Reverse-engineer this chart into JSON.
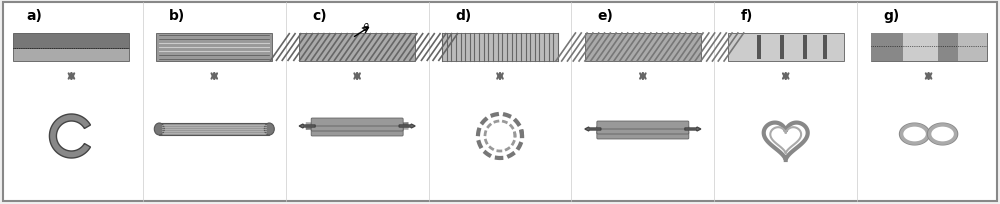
{
  "labels": [
    "a)",
    "b)",
    "c)",
    "d)",
    "e)",
    "f)",
    "g)"
  ],
  "bg_color": "#f0f0f0",
  "panel_bg": "#ffffff",
  "border_color": "#888888",
  "dark_gray": "#555555",
  "medium_gray": "#888888",
  "light_gray": "#cccccc",
  "stripe_dark": "#666666",
  "stripe_light": "#aaaaaa",
  "n_panels": 7
}
